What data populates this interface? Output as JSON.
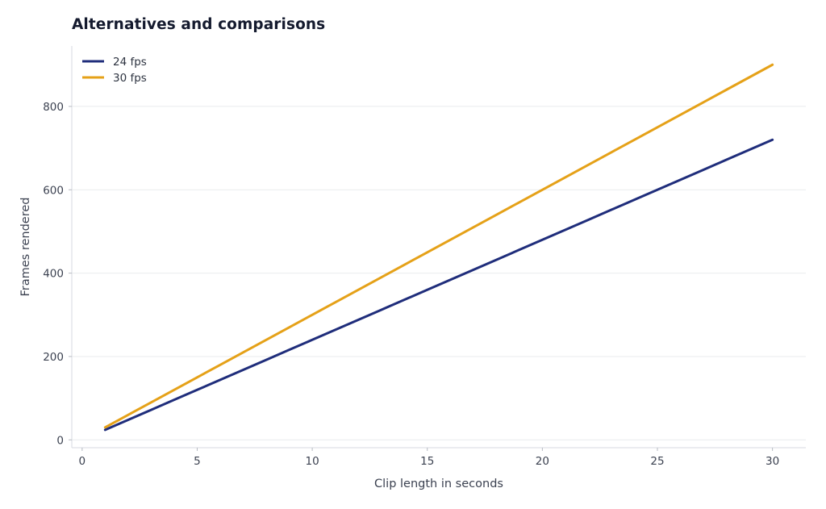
{
  "chart_data": {
    "type": "line",
    "title": "Alternatives and comparisons",
    "xlabel": "Clip length in seconds",
    "ylabel": "Frames rendered",
    "x": [
      1,
      2,
      3,
      4,
      5,
      6,
      7,
      8,
      9,
      10,
      11,
      12,
      13,
      14,
      15,
      16,
      17,
      18,
      19,
      20,
      21,
      22,
      23,
      24,
      25,
      26,
      27,
      28,
      29,
      30
    ],
    "series": [
      {
        "name": "24 fps",
        "color": "#1f2d7b",
        "values": [
          24,
          48,
          72,
          96,
          120,
          144,
          168,
          192,
          216,
          240,
          264,
          288,
          312,
          336,
          360,
          384,
          408,
          432,
          456,
          480,
          504,
          528,
          552,
          576,
          600,
          624,
          648,
          672,
          696,
          720
        ]
      },
      {
        "name": "30 fps",
        "color": "#e5a118",
        "values": [
          30,
          60,
          90,
          120,
          150,
          180,
          210,
          240,
          270,
          300,
          330,
          360,
          390,
          420,
          450,
          480,
          510,
          540,
          570,
          600,
          630,
          660,
          690,
          720,
          750,
          780,
          810,
          840,
          870,
          900
        ]
      }
    ],
    "xticks": [
      0,
      5,
      10,
      15,
      20,
      25,
      30
    ],
    "yticks": [
      0,
      200,
      400,
      600,
      800
    ],
    "xlim": [
      -0.45,
      31.45
    ],
    "ylim": [
      -18.8,
      945
    ],
    "grid": "horizontal",
    "legend": "top-left"
  }
}
